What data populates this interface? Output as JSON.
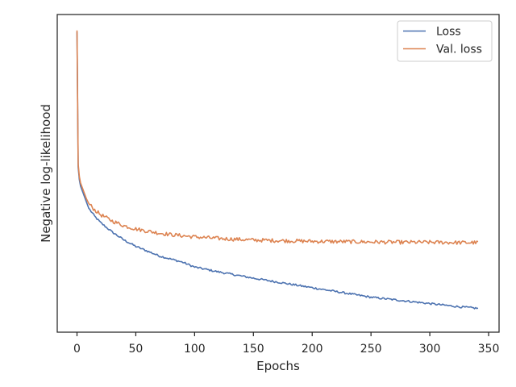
{
  "chart_data": {
    "type": "line",
    "title": "",
    "xlabel": "Epochs",
    "ylabel": "Negative log-likelihood",
    "xlim": [
      -16.8,
      358.9
    ],
    "ylim": [
      0,
      1
    ],
    "x_ticks": [
      0,
      50,
      100,
      150,
      200,
      250,
      300,
      350
    ],
    "y_ticks": [],
    "grid": false,
    "legend_position": "top-right",
    "series": [
      {
        "name": "Loss",
        "color": "#4c72b0",
        "points": [
          [
            0,
            0.945
          ],
          [
            1,
            0.52
          ],
          [
            2,
            0.48
          ],
          [
            3,
            0.46
          ],
          [
            5,
            0.44
          ],
          [
            8,
            0.41
          ],
          [
            10,
            0.39
          ],
          [
            15,
            0.365
          ],
          [
            20,
            0.345
          ],
          [
            30,
            0.315
          ],
          [
            40,
            0.29
          ],
          [
            50,
            0.27
          ],
          [
            60,
            0.255
          ],
          [
            70,
            0.24
          ],
          [
            80,
            0.23
          ],
          [
            90,
            0.22
          ],
          [
            100,
            0.205
          ],
          [
            120,
            0.19
          ],
          [
            150,
            0.17
          ],
          [
            175,
            0.155
          ],
          [
            200,
            0.14
          ],
          [
            225,
            0.125
          ],
          [
            250,
            0.11
          ],
          [
            275,
            0.1
          ],
          [
            300,
            0.09
          ],
          [
            325,
            0.08
          ],
          [
            341,
            0.075
          ]
        ]
      },
      {
        "name": "Val. loss",
        "color": "#dd8452",
        "points": [
          [
            0,
            0.95
          ],
          [
            1,
            0.53
          ],
          [
            2,
            0.49
          ],
          [
            3,
            0.47
          ],
          [
            5,
            0.45
          ],
          [
            8,
            0.42
          ],
          [
            10,
            0.405
          ],
          [
            15,
            0.385
          ],
          [
            20,
            0.37
          ],
          [
            30,
            0.35
          ],
          [
            40,
            0.335
          ],
          [
            50,
            0.325
          ],
          [
            60,
            0.318
          ],
          [
            70,
            0.312
          ],
          [
            80,
            0.307
          ],
          [
            100,
            0.3
          ],
          [
            120,
            0.295
          ],
          [
            150,
            0.29
          ],
          [
            175,
            0.288
          ],
          [
            200,
            0.286
          ],
          [
            225,
            0.285
          ],
          [
            250,
            0.284
          ],
          [
            275,
            0.283
          ],
          [
            300,
            0.283
          ],
          [
            325,
            0.282
          ],
          [
            341,
            0.282
          ]
        ]
      }
    ]
  }
}
